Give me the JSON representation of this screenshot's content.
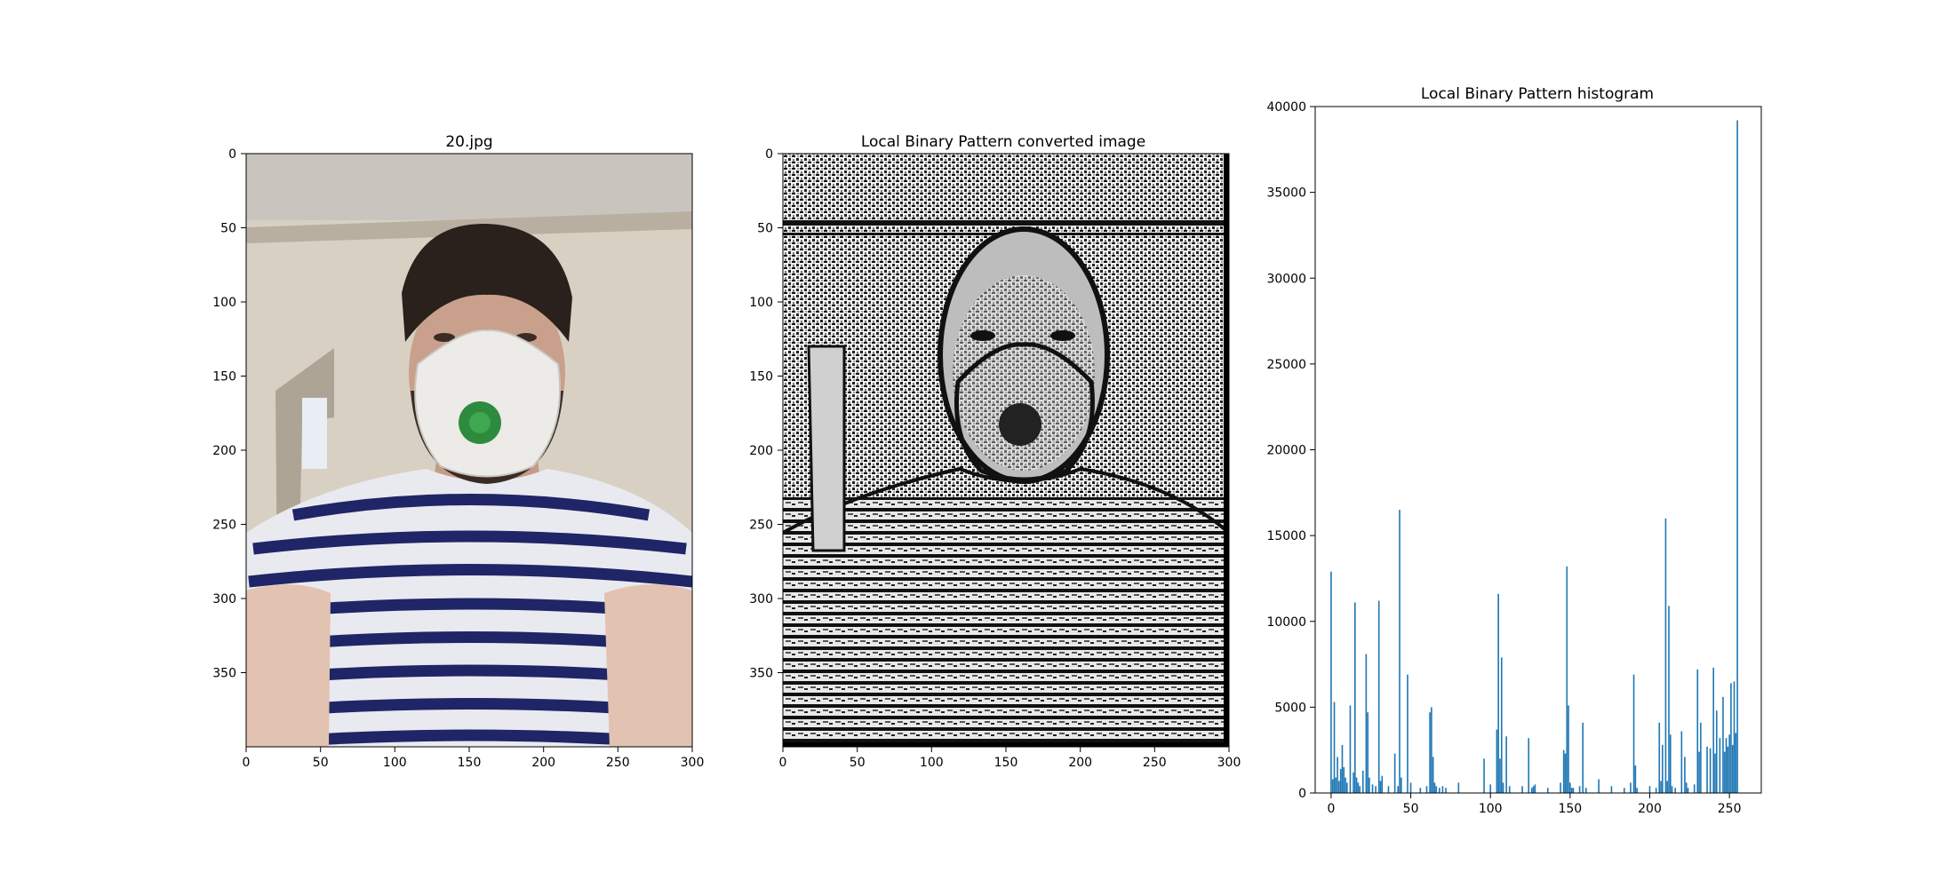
{
  "panels": {
    "photo": {
      "title": "20.jpg",
      "xticks": [
        "0",
        "50",
        "100",
        "150",
        "200",
        "250",
        "300"
      ],
      "yticks": [
        "0",
        "50",
        "100",
        "150",
        "200",
        "250",
        "300",
        "350"
      ],
      "xlim": [
        0,
        300
      ],
      "ylim": [
        0,
        400
      ],
      "colors": {
        "ceiling": "#c9c5be",
        "wall": "#d8d0c3",
        "hair": "#2a211c",
        "skin": "#c9a08b",
        "mask": "#ecebe8",
        "valve": "#2e8b3e",
        "shirt": "#e9eaef",
        "stripe": "#1f2566"
      }
    },
    "lbp": {
      "title": "Local Binary Pattern converted image",
      "xticks": [
        "0",
        "50",
        "100",
        "150",
        "200",
        "250",
        "300"
      ],
      "yticks": [
        "0",
        "50",
        "100",
        "150",
        "200",
        "250",
        "300",
        "350"
      ],
      "xlim": [
        0,
        300
      ],
      "ylim": [
        0,
        400
      ]
    }
  },
  "chart_data": {
    "type": "bar",
    "title": "Local Binary Pattern histogram",
    "xlabel": "",
    "ylabel": "",
    "xlim": [
      -10,
      270
    ],
    "ylim": [
      0,
      40000
    ],
    "xticks": [
      "0",
      "50",
      "100",
      "150",
      "200",
      "250"
    ],
    "yticks": [
      "0",
      "5000",
      "10000",
      "15000",
      "20000",
      "25000",
      "30000",
      "35000",
      "40000"
    ],
    "color": "#1f77b4",
    "bins": [
      0,
      1,
      2,
      3,
      4,
      5,
      6,
      7,
      8,
      9,
      10,
      12,
      14,
      15,
      16,
      17,
      18,
      20,
      22,
      23,
      24,
      26,
      28,
      30,
      31,
      32,
      36,
      40,
      42,
      43,
      44,
      48,
      50,
      56,
      60,
      62,
      63,
      64,
      65,
      66,
      68,
      70,
      72,
      80,
      96,
      100,
      104,
      105,
      106,
      107,
      108,
      110,
      112,
      120,
      124,
      126,
      127,
      128,
      136,
      144,
      146,
      147,
      148,
      149,
      150,
      151,
      152,
      156,
      158,
      160,
      168,
      176,
      184,
      188,
      190,
      191,
      192,
      200,
      204,
      206,
      207,
      208,
      210,
      211,
      212,
      213,
      214,
      216,
      220,
      222,
      223,
      224,
      228,
      230,
      231,
      232,
      236,
      238,
      240,
      241,
      242,
      244,
      246,
      247,
      248,
      249,
      250,
      251,
      252,
      253,
      254,
      255
    ],
    "values": [
      12900,
      800,
      5300,
      900,
      2100,
      700,
      1400,
      2800,
      1500,
      900,
      600,
      5100,
      1200,
      11100,
      900,
      600,
      400,
      1300,
      8100,
      4700,
      900,
      500,
      400,
      11200,
      700,
      1000,
      400,
      2300,
      400,
      16500,
      900,
      6900,
      600,
      300,
      400,
      4700,
      5000,
      2100,
      600,
      400,
      300,
      400,
      300,
      600,
      2000,
      500,
      3700,
      11600,
      2000,
      7900,
      600,
      3300,
      400,
      400,
      3200,
      300,
      400,
      500,
      300,
      600,
      2500,
      2300,
      13200,
      5100,
      600,
      300,
      300,
      400,
      4100,
      300,
      800,
      400,
      300,
      600,
      6900,
      1600,
      300,
      400,
      300,
      4100,
      700,
      2800,
      16000,
      700,
      10900,
      3400,
      400,
      300,
      3600,
      2100,
      600,
      300,
      500,
      7200,
      2400,
      4100,
      2700,
      2600,
      7300,
      2300,
      4800,
      3200,
      5600,
      2400,
      3200,
      2700,
      3400,
      6400,
      2800,
      6500,
      3500,
      39200
    ]
  }
}
